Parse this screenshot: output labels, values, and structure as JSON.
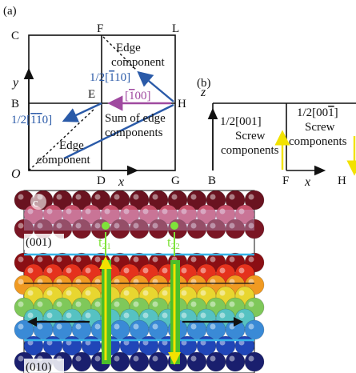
{
  "panel_a": {
    "tag": "(a)",
    "points": {
      "C": "C",
      "F": "F",
      "L": "L",
      "B": "B",
      "E": "E",
      "H": "H",
      "O": "O",
      "D": "D",
      "G": "G"
    },
    "axes": {
      "x": "x",
      "y": "y"
    },
    "vec_up": {
      "pre": "1/2[",
      "bar": "1",
      "mid": "10]",
      "full": "1/2[110]"
    },
    "vec_down": {
      "pre": "1/2[",
      "bar1": "1",
      "bar2": "1",
      "post": "0]"
    },
    "vec_mid": {
      "pre": "[",
      "bar": "1",
      "post": "00]"
    },
    "edge_top": [
      "Edge",
      "component"
    ],
    "edge_bottom": [
      "Edge",
      "component"
    ],
    "sum_text": [
      "Sum of edge",
      "components"
    ],
    "colors": {
      "blue": "#2a5aa8",
      "magenta": "#a04aa0"
    }
  },
  "panel_b": {
    "tag": "(b)",
    "axes": {
      "z": "z",
      "x": "x"
    },
    "points": {
      "B": "B",
      "F": "F",
      "H": "H"
    },
    "screw_left": {
      "vec": "1/2[001]",
      "lines": [
        "Screw",
        "components"
      ]
    },
    "screw_right": {
      "vec_pre": "1/2[00",
      "bar": "1",
      "vec_post": "]",
      "lines": [
        "Screw",
        "components"
      ]
    },
    "arrow_color": "#f2e200"
  },
  "panel_c": {
    "tag": "c",
    "plane_top": "(001)",
    "plane_bottom": "(010)",
    "t21": {
      "t": "t",
      "sub": "21"
    },
    "t22": {
      "t": "t",
      "sub": "22"
    },
    "colors": {
      "layer_line": "#36b4e8",
      "label_green": "#7fe23a",
      "arrow_yellow": "#f2e200"
    }
  }
}
